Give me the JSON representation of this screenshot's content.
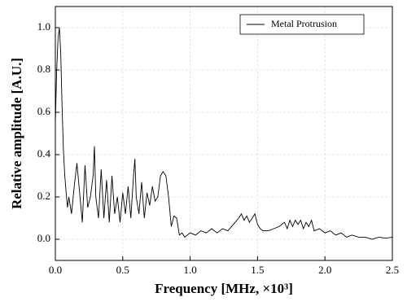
{
  "chart_data": {
    "type": "line",
    "xlabel": "Frequency [MHz, ×10³]",
    "ylabel": "Relative amplitude [A.U.]",
    "xlim": [
      0,
      2.5
    ],
    "ylim": [
      -0.1,
      1.1
    ],
    "xticks": [
      {
        "value": 0,
        "label": "0.0"
      },
      {
        "value": 0.5,
        "label": "0.5"
      },
      {
        "value": 1,
        "label": "1.0"
      },
      {
        "value": 1.5,
        "label": "1.5"
      },
      {
        "value": 2,
        "label": "2.0"
      },
      {
        "value": 2.5,
        "label": "2.5"
      }
    ],
    "yticks": [
      {
        "value": 0,
        "label": "0.0"
      },
      {
        "value": 0.2,
        "label": "0.2"
      },
      {
        "value": 0.4,
        "label": "0.4"
      },
      {
        "value": 0.6,
        "label": "0.6"
      },
      {
        "value": 0.8,
        "label": "0.8"
      },
      {
        "value": 1,
        "label": "1.0"
      }
    ],
    "grid": true,
    "legend": "upper right",
    "x": [
      0,
      0.01,
      0.02,
      0.03,
      0.04,
      0.05,
      0.06,
      0.07,
      0.08,
      0.09,
      0.1,
      0.12,
      0.14,
      0.16,
      0.18,
      0.2,
      0.22,
      0.24,
      0.26,
      0.28,
      0.29,
      0.3,
      0.32,
      0.34,
      0.36,
      0.38,
      0.4,
      0.42,
      0.44,
      0.46,
      0.48,
      0.5,
      0.52,
      0.54,
      0.56,
      0.58,
      0.59,
      0.6,
      0.62,
      0.64,
      0.66,
      0.68,
      0.7,
      0.72,
      0.74,
      0.76,
      0.78,
      0.8,
      0.82,
      0.84,
      0.86,
      0.88,
      0.9,
      0.92,
      0.94,
      0.96,
      1.0,
      1.04,
      1.08,
      1.12,
      1.16,
      1.2,
      1.24,
      1.28,
      1.32,
      1.36,
      1.38,
      1.4,
      1.42,
      1.44,
      1.46,
      1.48,
      1.5,
      1.52,
      1.54,
      1.58,
      1.62,
      1.66,
      1.7,
      1.72,
      1.74,
      1.76,
      1.78,
      1.8,
      1.82,
      1.84,
      1.86,
      1.88,
      1.9,
      1.92,
      1.96,
      2.0,
      2.04,
      2.08,
      2.12,
      2.16,
      2.2,
      2.25,
      2.3,
      2.35,
      2.4,
      2.45,
      2.5
    ],
    "series": [
      {
        "name": "Metal Protrusion",
        "color": "#000000",
        "values": [
          0.55,
          0.8,
          0.95,
          1.0,
          0.88,
          0.62,
          0.42,
          0.3,
          0.22,
          0.15,
          0.2,
          0.12,
          0.25,
          0.36,
          0.22,
          0.08,
          0.35,
          0.15,
          0.2,
          0.3,
          0.44,
          0.2,
          0.1,
          0.33,
          0.1,
          0.28,
          0.08,
          0.3,
          0.12,
          0.2,
          0.08,
          0.22,
          0.12,
          0.25,
          0.1,
          0.3,
          0.38,
          0.2,
          0.12,
          0.27,
          0.1,
          0.22,
          0.16,
          0.25,
          0.18,
          0.2,
          0.3,
          0.32,
          0.3,
          0.2,
          0.06,
          0.11,
          0.1,
          0.02,
          0.03,
          0.01,
          0.03,
          0.02,
          0.04,
          0.03,
          0.05,
          0.03,
          0.05,
          0.04,
          0.07,
          0.1,
          0.12,
          0.09,
          0.11,
          0.08,
          0.1,
          0.12,
          0.07,
          0.05,
          0.04,
          0.04,
          0.05,
          0.06,
          0.08,
          0.05,
          0.09,
          0.06,
          0.09,
          0.07,
          0.09,
          0.05,
          0.08,
          0.06,
          0.09,
          0.04,
          0.05,
          0.03,
          0.04,
          0.02,
          0.03,
          0.01,
          0.02,
          0.01,
          0.01,
          0,
          0.01,
          0.005,
          0.01
        ]
      }
    ]
  }
}
